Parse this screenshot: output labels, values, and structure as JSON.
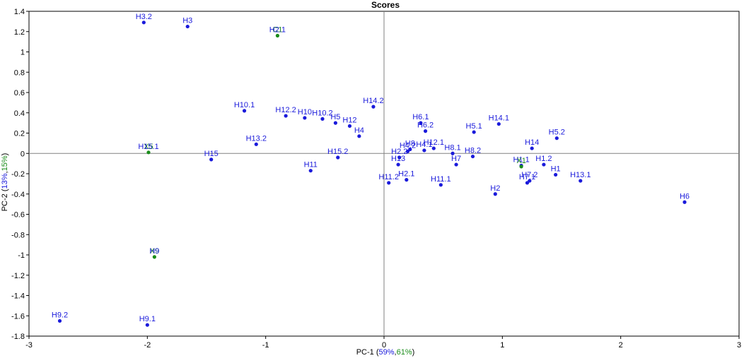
{
  "chart_data": {
    "type": "scatter",
    "title": "Scores",
    "xlabel": {
      "prefix": "PC-1 (",
      "pct_a": "59%",
      "separator": ",",
      "pct_b": "61%",
      "suffix": ")"
    },
    "ylabel": {
      "prefix": "PC-2 (",
      "pct_a": "13%",
      "separator": ",",
      "pct_b": "15%",
      "suffix": ")"
    },
    "xlim": [
      -3,
      3
    ],
    "ylim": [
      -1.8,
      1.4
    ],
    "xticks": [
      -3,
      -2,
      -1,
      0,
      1,
      2,
      3
    ],
    "yticks": [
      -1.8,
      -1.6,
      -1.4,
      -1.2,
      -1,
      -0.8,
      -0.6,
      -0.4,
      -0.2,
      0,
      0.2,
      0.4,
      0.6,
      0.8,
      1,
      1.2,
      1.4
    ],
    "zero_lines": true,
    "grid": false,
    "colors": {
      "calibration": "#1a1adb",
      "validation": "#1a8c1a",
      "axis": "#808080",
      "frame": "#000000"
    },
    "series": [
      {
        "points": [
          {
            "label": "H3.2",
            "x": -2.03,
            "y": 1.29
          },
          {
            "label": "H3",
            "x": -1.66,
            "y": 1.25
          },
          {
            "label": "H10.1",
            "x": -1.18,
            "y": 0.42
          },
          {
            "label": "H12.2",
            "x": -0.83,
            "y": 0.37
          },
          {
            "label": "H10",
            "x": -0.67,
            "y": 0.35
          },
          {
            "label": "H10.2",
            "x": -0.52,
            "y": 0.34
          },
          {
            "label": "H5",
            "x": -0.41,
            "y": 0.3
          },
          {
            "label": "H12",
            "x": -0.29,
            "y": 0.27
          },
          {
            "label": "H4",
            "x": -0.21,
            "y": 0.17
          },
          {
            "label": "H14.2",
            "x": -0.09,
            "y": 0.46
          },
          {
            "label": "H13.2",
            "x": -1.08,
            "y": 0.09
          },
          {
            "label": "H15",
            "x": -1.46,
            "y": -0.06
          },
          {
            "label": "H11",
            "x": -0.62,
            "y": -0.17
          },
          {
            "label": "H15.2",
            "x": -0.39,
            "y": -0.04
          },
          {
            "label": "H11.2",
            "x": 0.04,
            "y": -0.29
          },
          {
            "label": "H13",
            "x": 0.12,
            "y": -0.11
          },
          {
            "label": "H2.2",
            "x": 0.13,
            "y": -0.04
          },
          {
            "label": "H4.2",
            "x": 0.2,
            "y": 0.02
          },
          {
            "label": "H8",
            "x": 0.22,
            "y": 0.04
          },
          {
            "label": "H2.1",
            "x": 0.19,
            "y": -0.26
          },
          {
            "label": "H4.1",
            "x": 0.34,
            "y": 0.03
          },
          {
            "label": "H12.1",
            "x": 0.42,
            "y": 0.05
          },
          {
            "label": "H6.1",
            "x": 0.31,
            "y": 0.3
          },
          {
            "label": "H6.2",
            "x": 0.35,
            "y": 0.22
          },
          {
            "label": "H11.1",
            "x": 0.48,
            "y": -0.31
          },
          {
            "label": "H8.1",
            "x": 0.58,
            "y": 0.0
          },
          {
            "label": "H7",
            "x": 0.61,
            "y": -0.11
          },
          {
            "label": "H8.2",
            "x": 0.75,
            "y": -0.03
          },
          {
            "label": "H5.1",
            "x": 0.76,
            "y": 0.21
          },
          {
            "label": "H14.1",
            "x": 0.97,
            "y": 0.29
          },
          {
            "label": "H2",
            "x": 0.94,
            "y": -0.4
          },
          {
            "label": "H14",
            "x": 1.25,
            "y": 0.05
          },
          {
            "label": "H1.1",
            "x": 1.16,
            "y": -0.12
          },
          {
            "label": "H7.1",
            "x": 1.21,
            "y": -0.29
          },
          {
            "label": "H7.2",
            "x": 1.23,
            "y": -0.27
          },
          {
            "label": "H1.2",
            "x": 1.35,
            "y": -0.11
          },
          {
            "label": "H1",
            "x": 1.45,
            "y": -0.21
          },
          {
            "label": "H5.2",
            "x": 1.46,
            "y": 0.15
          },
          {
            "label": "H13.1",
            "x": 1.66,
            "y": -0.27
          },
          {
            "label": "H6",
            "x": 2.54,
            "y": -0.48
          },
          {
            "label": "H9.2",
            "x": -2.74,
            "y": -1.65
          },
          {
            "label": "H9.1",
            "x": -2.0,
            "y": -1.69
          }
        ]
      },
      {
        "points": [
          {
            "label": "C1",
            "x": -0.9,
            "y": 1.16
          },
          {
            "label": "X5",
            "x": -1.99,
            "y": 0.01
          },
          {
            "label": "X9",
            "x": -1.94,
            "y": -1.02
          },
          {
            "label": "X1",
            "x": 1.16,
            "y": -0.13
          }
        ]
      },
      {
        "points": [
          {
            "label": "H2.1",
            "x": -0.9,
            "y": 1.16
          },
          {
            "label": "H15.1",
            "x": -1.99,
            "y": 0.01
          },
          {
            "label": "H9",
            "x": -1.94,
            "y": -1.02
          }
        ],
        "markers": false
      }
    ]
  }
}
